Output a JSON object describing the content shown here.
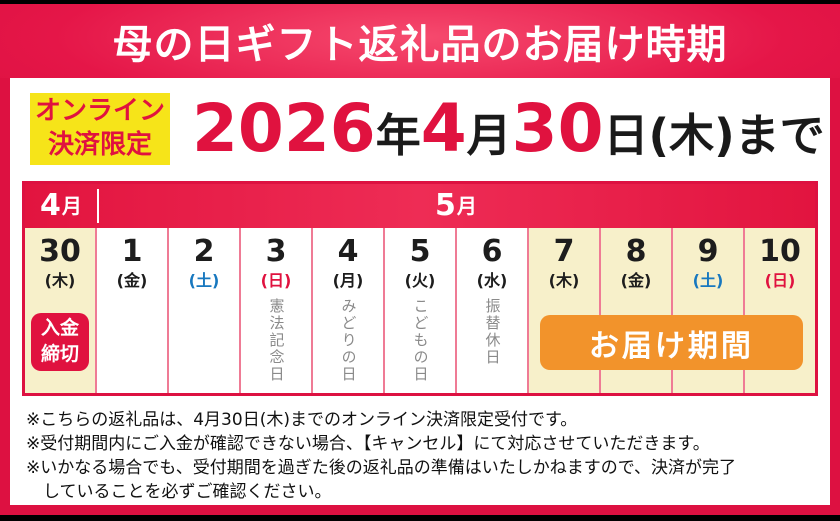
{
  "colors": {
    "crimson": "#dd1141",
    "crimson_light": "#f64a6e",
    "yellow_badge": "#f6e419",
    "cream_highlight": "#f7f0ca",
    "orange_delivery": "#f2932b",
    "saturday_blue": "#1878bf",
    "sunday_red": "#e0123f",
    "holiday_gray": "#8a8a8a"
  },
  "header": {
    "title": "母の日ギフト返礼品のお届け時期"
  },
  "banner": {
    "badge_line1": "オンライン",
    "badge_line2": "決済限定",
    "date_parts": [
      {
        "text": "2026",
        "red": true
      },
      {
        "text": "年",
        "red": false
      },
      {
        "text": "4",
        "red": true
      },
      {
        "text": "月",
        "red": false
      },
      {
        "text": "30",
        "red": true
      },
      {
        "text": "日(木)まで",
        "red": false
      }
    ]
  },
  "calendar": {
    "month_april_num": "4",
    "month_april_unit": "月",
    "month_may_num": "5",
    "month_may_unit": "月",
    "days": [
      {
        "num": "30",
        "weekday": "(木)",
        "wd_color": "black",
        "bg": "cream",
        "deadline_badge": true
      },
      {
        "num": "1",
        "weekday": "(金)",
        "wd_color": "black",
        "bg": "white"
      },
      {
        "num": "2",
        "weekday": "(土)",
        "wd_color": "blue",
        "bg": "white"
      },
      {
        "num": "3",
        "weekday": "(日)",
        "wd_color": "red",
        "bg": "white",
        "holiday": "憲法記念日"
      },
      {
        "num": "4",
        "weekday": "(月)",
        "wd_color": "black",
        "bg": "white",
        "holiday": "みどりの日"
      },
      {
        "num": "5",
        "weekday": "(火)",
        "wd_color": "black",
        "bg": "white",
        "holiday": "こどもの日"
      },
      {
        "num": "6",
        "weekday": "(水)",
        "wd_color": "black",
        "bg": "white",
        "holiday": "振替休日"
      },
      {
        "num": "7",
        "weekday": "(木)",
        "wd_color": "black",
        "bg": "cream"
      },
      {
        "num": "8",
        "weekday": "(金)",
        "wd_color": "black",
        "bg": "cream"
      },
      {
        "num": "9",
        "weekday": "(土)",
        "wd_color": "blue",
        "bg": "cream"
      },
      {
        "num": "10",
        "weekday": "(日)",
        "wd_color": "red",
        "bg": "cream"
      }
    ],
    "deadline_badge_line1": "入金",
    "deadline_badge_line2": "締切",
    "delivery_period_label": "お届け期間"
  },
  "notes": {
    "lines": [
      "※こちらの返礼品は、4月30日(木)までのオンライン決済限定受付です。",
      "※受付期間内にご入金が確認できない場合、【キャンセル】にて対応させていただきます。",
      "※いかなる場合でも、受付期間を過ぎた後の返礼品の準備はいたしかねますので、決済が完了",
      "していることを必ずご確認ください。"
    ]
  }
}
